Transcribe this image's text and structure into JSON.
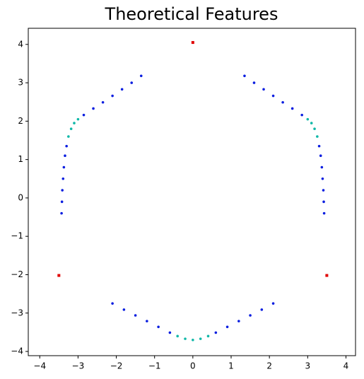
{
  "chart_data": {
    "type": "scatter",
    "title": "Theoretical Features",
    "xlim": [
      -4.3,
      4.25
    ],
    "ylim": [
      -4.11,
      4.42
    ],
    "xticks": [
      {
        "value": -4,
        "label": "−4"
      },
      {
        "value": -3,
        "label": "−3"
      },
      {
        "value": -2,
        "label": "−2"
      },
      {
        "value": -1,
        "label": "−1"
      },
      0,
      1,
      2,
      3,
      4
    ],
    "yticks": [
      {
        "value": -4,
        "label": "−4"
      },
      {
        "value": -3,
        "label": "−3"
      },
      {
        "value": -2,
        "label": "−2"
      },
      {
        "value": -1,
        "label": "−1"
      },
      0,
      1,
      2,
      3,
      4
    ],
    "series": [
      {
        "color": "#0a1ee0",
        "marker": "circle",
        "x": [
          -1.35,
          -1.6,
          -1.85,
          -2.1,
          -2.35,
          -2.6,
          -2.85,
          -3.3,
          -3.34,
          -3.37,
          -3.39,
          -3.41,
          -3.42,
          -3.43,
          1.35,
          1.6,
          1.85,
          2.1,
          2.35,
          2.6,
          2.85,
          3.3,
          3.34,
          3.37,
          3.39,
          3.41,
          3.42,
          3.43,
          -2.1,
          -1.8,
          -1.5,
          -1.2,
          -0.9,
          -0.6,
          0.6,
          0.9,
          1.2,
          1.5,
          1.8,
          2.1
        ],
        "y": [
          3.18,
          3.0,
          2.83,
          2.66,
          2.49,
          2.33,
          2.16,
          1.35,
          1.1,
          0.8,
          0.5,
          0.2,
          -0.1,
          -0.4,
          3.18,
          3.0,
          2.83,
          2.66,
          2.49,
          2.33,
          2.16,
          1.35,
          1.1,
          0.8,
          0.5,
          0.2,
          -0.1,
          -0.4,
          -2.75,
          -2.91,
          -3.06,
          -3.21,
          -3.36,
          -3.51,
          -3.51,
          -3.36,
          -3.21,
          -3.06,
          -2.91,
          -2.75
        ]
      },
      {
        "color": "#10b8a8",
        "marker": "circle",
        "x": [
          -3.0,
          -3.1,
          -3.18,
          -3.25,
          3.0,
          3.1,
          3.18,
          3.25,
          -0.4,
          -0.2,
          0,
          0.2,
          0.4
        ],
        "y": [
          2.05,
          1.95,
          1.8,
          1.6,
          2.05,
          1.95,
          1.8,
          1.6,
          -3.6,
          -3.67,
          -3.7,
          -3.67,
          -3.6
        ]
      },
      {
        "color": "#e00000",
        "marker": "square",
        "x": [
          0,
          -3.5,
          3.5
        ],
        "y": [
          4.05,
          -2.02,
          -2.02
        ]
      }
    ]
  }
}
